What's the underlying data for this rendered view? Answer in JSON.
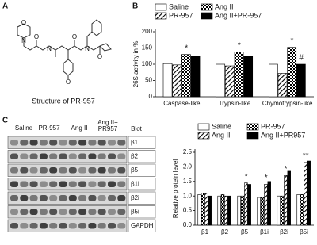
{
  "structure": {
    "label": "A",
    "caption": "Structure of PR-957",
    "atoms": [
      "O",
      "N",
      "N",
      "O",
      "O",
      "N",
      "O",
      "O"
    ]
  },
  "blot": {
    "label": "C",
    "lanes": [
      "Saline",
      "PR-957",
      "Ang II",
      "Ang II+",
      "PR957"
    ],
    "column_title": "Blot",
    "rows": [
      "β1",
      "β2",
      "β5",
      "β1i",
      "β2i",
      "β5i",
      "GAPDH"
    ]
  },
  "chart_data": [
    {
      "type": "bar",
      "label": "B",
      "y_label": "26S activity in %",
      "categories": [
        "Caspase-like",
        "Trypsin-like",
        "Chymotrypsin-like"
      ],
      "series": [
        {
          "name": "Saline",
          "color": "#ffffff",
          "pattern": "solid",
          "values": [
            102,
            100,
            100
          ],
          "annotations": [
            null,
            null,
            null
          ]
        },
        {
          "name": "PR-957",
          "color": "#000000",
          "pattern": "hatch",
          "values": [
            98,
            95,
            72
          ],
          "annotations": [
            null,
            null,
            null
          ]
        },
        {
          "name": "Ang II",
          "color": "#000000",
          "pattern": "checker",
          "values": [
            130,
            138,
            152
          ],
          "annotations": [
            "*",
            "*",
            "*"
          ]
        },
        {
          "name": "Ang II+PR-957",
          "color": "#000000",
          "pattern": "solid",
          "values": [
            125,
            125,
            100
          ],
          "annotations": [
            null,
            null,
            "#"
          ]
        }
      ],
      "legend_order": [
        0,
        2,
        1,
        3
      ],
      "ylim": [
        0,
        200
      ],
      "yticks": [
        0,
        50,
        100,
        150,
        200
      ]
    },
    {
      "type": "bar",
      "label": "",
      "y_label": "Relative protein level",
      "categories": [
        "β1",
        "β2",
        "β5",
        "β1i",
        "β2i",
        "β5i"
      ],
      "series": [
        {
          "name": "Saline",
          "color": "#ffffff",
          "pattern": "solid",
          "values": [
            1.05,
            1.0,
            1.0,
            0.95,
            1.0,
            1.05
          ],
          "annotations": [
            null,
            null,
            null,
            null,
            null,
            null
          ]
        },
        {
          "name": "PR-957",
          "color": "#000000",
          "pattern": "checker",
          "values": [
            1.1,
            1.05,
            1.0,
            0.95,
            1.0,
            1.05
          ],
          "annotations": [
            null,
            null,
            null,
            null,
            null,
            null
          ]
        },
        {
          "name": "Ang II",
          "color": "#000000",
          "pattern": "hatch",
          "values": [
            1.1,
            1.0,
            1.45,
            1.4,
            1.7,
            2.15
          ],
          "annotations": [
            null,
            null,
            "*",
            "*",
            "*",
            "**"
          ]
        },
        {
          "name": "Ang II+PR957",
          "color": "#000000",
          "pattern": "solid",
          "values": [
            1.0,
            1.0,
            1.4,
            1.5,
            1.85,
            2.2
          ],
          "annotations": [
            null,
            null,
            null,
            null,
            null,
            null
          ]
        }
      ],
      "legend_order": [
        0,
        1,
        2,
        3
      ],
      "ylim": [
        0,
        2.5
      ],
      "yticks": [
        {
          "value": 0,
          "label": "0.0"
        },
        0.5,
        {
          "value": 1,
          "label": "1.0"
        },
        1.5,
        {
          "value": 2,
          "label": "2.0"
        },
        2.5
      ]
    }
  ]
}
